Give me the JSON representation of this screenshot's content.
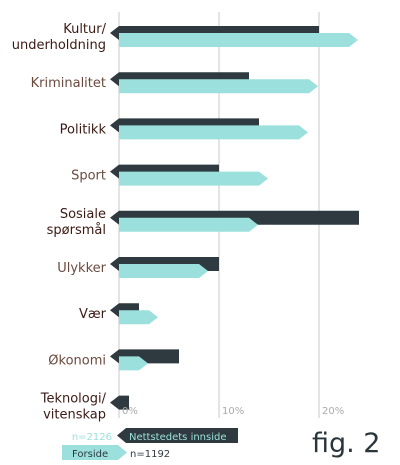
{
  "chart_data": {
    "type": "bar",
    "orientation": "horizontal",
    "categories": [
      "Kultur/ underholdning",
      "Kriminalitet",
      "Politikk",
      "Sport",
      "Sosiale spørsmål",
      "Ulykker",
      "Vær",
      "Økonomi",
      "Teknologi/ vitenskap"
    ],
    "category_lines": [
      [
        "Kultur/",
        "underholdning"
      ],
      [
        "Kriminalitet"
      ],
      [
        "Politikk"
      ],
      [
        "Sport"
      ],
      [
        "Sosiale",
        "spørsmål"
      ],
      [
        "Ulykker"
      ],
      [
        "Vær"
      ],
      [
        "Økonomi"
      ],
      [
        "Teknologi/",
        "vitenskap"
      ]
    ],
    "category_colors": [
      "#3b1a14",
      "#6b4a3e",
      "#3b1a14",
      "#6b4a3e",
      "#3b1a14",
      "#6b4a3e",
      "#3b1a14",
      "#6b4a3e",
      "#3b1a14"
    ],
    "series": [
      {
        "name": "Nettstedets innside",
        "n_label": "n=2126",
        "color": "#2e3a40",
        "values": [
          20,
          13,
          14,
          10,
          24,
          10,
          2,
          6,
          1
        ]
      },
      {
        "name": "Forside",
        "n_label": "n=1192",
        "color": "#9be0dc",
        "values": [
          23,
          19,
          18,
          14,
          13,
          8,
          3,
          2,
          0
        ]
      }
    ],
    "xlim": [
      0,
      25
    ],
    "xticks": [
      0,
      10,
      20
    ],
    "xtick_labels": [
      "0%",
      "10%",
      "20%"
    ],
    "grid": true,
    "legend_position": "bottom-left"
  },
  "figure_label": "fig. 2"
}
